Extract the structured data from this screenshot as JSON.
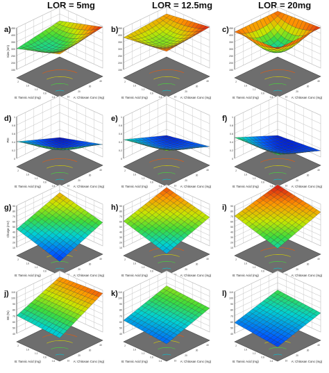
{
  "headers": [
    "LOR = 5mg",
    "LOR = 12.5mg",
    "LOR = 20mg"
  ],
  "axis_a": "A: Chitosan Conc (mg)",
  "axis_b": "B: Tannic Acid (mg)",
  "colors": {
    "floor": "#6e6e6e",
    "grid": "#bdbdbd",
    "mesh": "#333333"
  },
  "chart_data": [
    {
      "panel": "a)",
      "type": "surface3d",
      "zlabel": "Size (nm)",
      "zticks": [
        "150",
        "200",
        "250",
        "300",
        "350",
        "400",
        "450"
      ],
      "zlim": [
        150,
        450
      ],
      "corners": {
        "a_low_b_low": 400,
        "a_high_b_low": 445,
        "a_low_b_high": 300,
        "a_high_b_high": 350
      },
      "curvature": 120,
      "grid": true
    },
    {
      "panel": "b)",
      "type": "surface3d",
      "zlabel": "",
      "zticks": [
        "150",
        "200",
        "250",
        "300",
        "350",
        "400",
        "450"
      ],
      "zlim": [
        150,
        450
      ],
      "corners": {
        "a_low_b_low": 420,
        "a_high_b_low": 445,
        "a_low_b_high": 380,
        "a_high_b_high": 400
      },
      "curvature": 120,
      "grid": true
    },
    {
      "panel": "c)",
      "type": "surface3d",
      "zlabel": "",
      "zticks": [
        "150",
        "200",
        "250",
        "300",
        "350",
        "400",
        "450"
      ],
      "zlim": [
        150,
        450
      ],
      "corners": {
        "a_low_b_low": 440,
        "a_high_b_low": 440,
        "a_low_b_high": 420,
        "a_high_b_high": 420
      },
      "curvature": 250,
      "grid": true
    },
    {
      "panel": "d)",
      "type": "surface3d",
      "zlabel": "PDI",
      "zticks": [
        "0",
        "0.2",
        "0.4",
        "0.6",
        "0.8",
        "1"
      ],
      "zlim": [
        0,
        1
      ],
      "corners": {
        "a_low_b_low": 0.7,
        "a_high_b_low": 0.3,
        "a_low_b_high": 0.4,
        "a_high_b_high": 0.0
      },
      "curvature": 0.25,
      "grid": true
    },
    {
      "panel": "e)",
      "type": "surface3d",
      "zlabel": "",
      "zticks": [
        "0",
        "0.2",
        "0.4",
        "0.6",
        "0.8",
        "1"
      ],
      "zlim": [
        0,
        1
      ],
      "corners": {
        "a_low_b_low": 0.65,
        "a_high_b_low": 0.25,
        "a_low_b_high": 0.45,
        "a_high_b_high": 0.05
      },
      "curvature": 0.2,
      "grid": true
    },
    {
      "panel": "f)",
      "type": "surface3d",
      "zlabel": "",
      "zticks": [
        "0",
        "0.2",
        "0.4",
        "0.6",
        "0.8",
        "1"
      ],
      "zlim": [
        0,
        1
      ],
      "corners": {
        "a_low_b_low": 0.55,
        "a_high_b_low": 0.15,
        "a_low_b_high": 0.5,
        "a_high_b_high": 0.05
      },
      "curvature": 0.25,
      "grid": true
    },
    {
      "panel": "g)",
      "type": "surface3d",
      "zlabel": "Charge (mV)",
      "zticks": [
        "10",
        "20",
        "30",
        "40",
        "50",
        "60",
        "70",
        "80",
        "90"
      ],
      "zlim": [
        10,
        90
      ],
      "corners": {
        "a_low_b_low": 20,
        "a_high_b_low": 55,
        "a_low_b_high": 45,
        "a_high_b_high": 75
      },
      "curvature": 0,
      "grid": true
    },
    {
      "panel": "h)",
      "type": "surface3d",
      "zlabel": "",
      "zticks": [
        "10",
        "20",
        "30",
        "40",
        "50",
        "60",
        "70",
        "80",
        "90"
      ],
      "zlim": [
        10,
        90
      ],
      "corners": {
        "a_low_b_low": 35,
        "a_high_b_low": 65,
        "a_low_b_high": 60,
        "a_high_b_high": 85
      },
      "curvature": 0,
      "grid": true
    },
    {
      "panel": "i)",
      "type": "surface3d",
      "zlabel": "",
      "zticks": [
        "10",
        "20",
        "30",
        "40",
        "50",
        "60",
        "70",
        "80",
        "90"
      ],
      "zlim": [
        10,
        90
      ],
      "corners": {
        "a_low_b_low": 45,
        "a_high_b_low": 75,
        "a_low_b_high": 70,
        "a_high_b_high": 90
      },
      "curvature": 0,
      "grid": true
    },
    {
      "panel": "j)",
      "type": "surface3d",
      "zlabel": "EE (%)",
      "zticks": [
        "40",
        "50",
        "60",
        "70",
        "80",
        "90",
        "100",
        "110"
      ],
      "zlim": [
        40,
        110
      ],
      "corners": {
        "a_low_b_low": 65,
        "a_high_b_low": 105,
        "a_low_b_high": 70,
        "a_high_b_high": 100
      },
      "curvature": 0,
      "grid": true
    },
    {
      "panel": "k)",
      "type": "surface3d",
      "zlabel": "",
      "zticks": [
        "40",
        "50",
        "60",
        "70",
        "80",
        "90",
        "100",
        "110"
      ],
      "zlim": [
        40,
        110
      ],
      "corners": {
        "a_low_b_low": 55,
        "a_high_b_low": 80,
        "a_low_b_high": 62,
        "a_high_b_high": 85
      },
      "curvature": 0,
      "grid": true
    },
    {
      "panel": "l)",
      "type": "surface3d",
      "zlabel": "",
      "zticks": [
        "40",
        "50",
        "60",
        "70",
        "80",
        "90",
        "100",
        "110"
      ],
      "zlim": [
        40,
        110
      ],
      "corners": {
        "a_low_b_low": 50,
        "a_high_b_low": 72,
        "a_low_b_high": 58,
        "a_high_b_high": 78
      },
      "curvature": 0,
      "grid": true
    }
  ]
}
